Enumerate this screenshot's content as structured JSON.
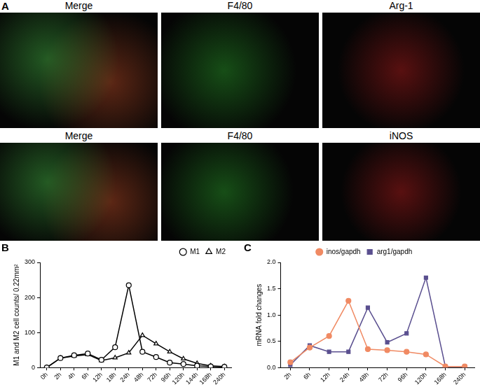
{
  "panel_a": {
    "panel_label": "A",
    "rows": [
      [
        "Merge",
        "F4/80",
        "Arg-1"
      ],
      [
        "Merge",
        "F4/80",
        "iNOS"
      ]
    ]
  },
  "chart_data": [
    {
      "panel_label": "B",
      "type": "line",
      "categories": [
        "0h",
        "2h",
        "4h",
        "6h",
        "12h",
        "18h",
        "24h",
        "48h",
        "72h",
        "96h",
        "120h",
        "144h",
        "168h",
        "240h"
      ],
      "series": [
        {
          "name": "M1",
          "color": "#000000",
          "marker": "open circle",
          "values": [
            0,
            27,
            35,
            40,
            22,
            58,
            235,
            45,
            30,
            14,
            10,
            5,
            3,
            2
          ]
        },
        {
          "name": "M2",
          "color": "#000000",
          "marker": "open triangle",
          "values": [
            0,
            27,
            33,
            37,
            20,
            28,
            42,
            92,
            68,
            45,
            25,
            12,
            5,
            3
          ]
        }
      ],
      "y_label": "M1 and M2 cell counts/ 0.22mm²",
      "ylim": [
        0,
        300
      ],
      "yticks": [
        0,
        100,
        200,
        300
      ],
      "grid": false,
      "legend": "upper right"
    },
    {
      "panel_label": "C",
      "type": "line",
      "categories": [
        "2h",
        "6h",
        "12h",
        "24h",
        "48h",
        "72h",
        "96h",
        "120h",
        "168h",
        "240h"
      ],
      "series": [
        {
          "name": "inos/gapdh",
          "color": "#f08a63",
          "marker": "circle",
          "values": [
            0.1,
            0.38,
            0.6,
            1.27,
            0.35,
            0.33,
            0.3,
            0.25,
            0.02,
            0.02
          ]
        },
        {
          "name": "arg1/gapdh",
          "color": "#5a4f8f",
          "marker": "square",
          "values": [
            0.05,
            0.42,
            0.3,
            0.3,
            1.14,
            0.48,
            0.65,
            1.71,
            0.02,
            0.02
          ]
        }
      ],
      "y_label": "mRNA fold changes",
      "ylim": [
        0,
        2
      ],
      "yticks": [
        {
          "value": 0,
          "label": "0.0"
        },
        0.5,
        {
          "value": 1,
          "label": "1.0"
        },
        1.5,
        {
          "value": 2,
          "label": "2.0"
        }
      ],
      "grid": false,
      "legend": "upper center"
    }
  ]
}
